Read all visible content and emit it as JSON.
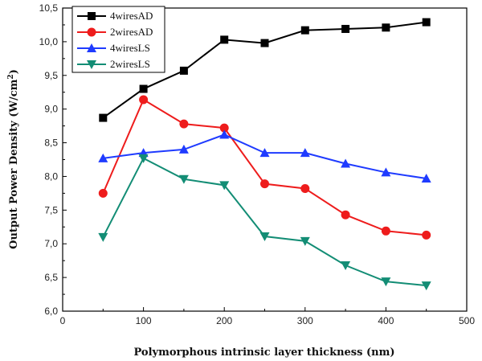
{
  "chart_data": {
    "type": "line",
    "xlabel": "Polymorphous intrinsic layer thickness (nm)",
    "ylabel": "Output Power Density (W/cm",
    "ylabel_sup": "2",
    "ylabel_close": ")",
    "xlim": [
      0,
      500
    ],
    "ylim": [
      6.0,
      10.5
    ],
    "xticks": [
      0,
      100,
      200,
      300,
      400,
      500
    ],
    "xtick_labels": [
      "0",
      "100",
      "200",
      "300",
      "400",
      "500"
    ],
    "yticks": [
      6.0,
      6.5,
      7.0,
      7.5,
      8.0,
      8.5,
      9.0,
      9.5,
      10.0,
      10.5
    ],
    "ytick_labels": [
      "6,0",
      "6,5",
      "7,0",
      "7,5",
      "8,0",
      "8,5",
      "9,0",
      "9,5",
      "10,0",
      "10,5"
    ],
    "grid": false,
    "legend_position": "top-left",
    "x": [
      50,
      100,
      150,
      200,
      250,
      300,
      350,
      400,
      450
    ],
    "series": [
      {
        "name": "4wiresAD",
        "color": "#000000",
        "marker": "square",
        "values": [
          8.87,
          9.3,
          9.57,
          10.03,
          9.98,
          10.17,
          10.19,
          10.21,
          10.29
        ]
      },
      {
        "name": "2wiresAD",
        "color": "#ee1c1c",
        "marker": "circle",
        "values": [
          7.75,
          9.14,
          8.78,
          8.72,
          7.89,
          7.82,
          7.43,
          7.19,
          7.13
        ]
      },
      {
        "name": "4wiresLS",
        "color": "#1f3bff",
        "marker": "triangle-up",
        "values": [
          8.27,
          8.35,
          8.4,
          8.62,
          8.35,
          8.35,
          8.19,
          8.06,
          7.97
        ]
      },
      {
        "name": "2wiresLS",
        "color": "#138d75",
        "marker": "triangle-down",
        "values": [
          7.1,
          8.27,
          7.96,
          7.87,
          7.11,
          7.04,
          6.68,
          6.44,
          6.38
        ]
      }
    ]
  }
}
